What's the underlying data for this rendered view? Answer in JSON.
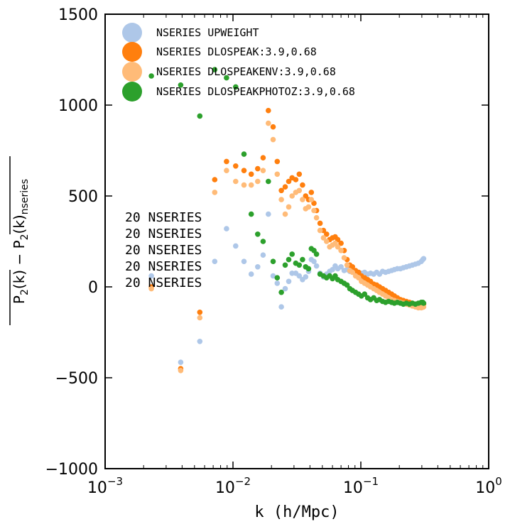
{
  "chart_data": {
    "type": "scatter",
    "xscale": "log",
    "xlim": [
      0.001,
      1
    ],
    "ylim": [
      -1000,
      1500
    ],
    "xlabel": "k (h/Mpc)",
    "ylabel": "P2(k) − P2(k)nseries",
    "ylabel_parts": {
      "p": "P",
      "sub": "2",
      "k": "(k)",
      "minus": " − ",
      "sub_tail": "nseries"
    },
    "xticks": [
      {
        "value": 0.001,
        "base": "10",
        "exp": "−3"
      },
      {
        "value": 0.01,
        "base": "10",
        "exp": "−2"
      },
      {
        "value": 0.1,
        "base": "10",
        "exp": "−1"
      },
      {
        "value": 1,
        "base": "10",
        "exp": "0"
      }
    ],
    "yticks": [
      {
        "value": -1000,
        "label": "−1000"
      },
      {
        "value": -500,
        "label": "−500"
      },
      {
        "value": 0,
        "label": "0"
      },
      {
        "value": 500,
        "label": "500"
      },
      {
        "value": 1000,
        "label": "1000"
      },
      {
        "value": 1500,
        "label": "1500"
      }
    ],
    "grid": false,
    "legend_position": "top-left",
    "annotation_lines": [
      "20 NSERIES",
      "20 NSERIES",
      "20 NSERIES",
      "20 NSERIES",
      "20 NSERIES"
    ],
    "series": [
      {
        "name": "NSERIES UPWEIGHT",
        "color": "#aec7e8",
        "points": [
          [
            0.0023,
            60
          ],
          [
            0.0039,
            -415
          ],
          [
            0.0055,
            -300
          ],
          [
            0.0072,
            140
          ],
          [
            0.0089,
            320
          ],
          [
            0.0105,
            225
          ],
          [
            0.0122,
            140
          ],
          [
            0.0139,
            70
          ],
          [
            0.0156,
            110
          ],
          [
            0.0172,
            175
          ],
          [
            0.0189,
            400
          ],
          [
            0.0206,
            60
          ],
          [
            0.0222,
            20
          ],
          [
            0.0239,
            -110
          ],
          [
            0.0256,
            -10
          ],
          [
            0.0273,
            30
          ],
          [
            0.029,
            75
          ],
          [
            0.031,
            75
          ],
          [
            0.033,
            60
          ],
          [
            0.035,
            40
          ],
          [
            0.037,
            55
          ],
          [
            0.039,
            85
          ],
          [
            0.041,
            150
          ],
          [
            0.043,
            140
          ],
          [
            0.045,
            115
          ],
          [
            0.048,
            75
          ],
          [
            0.051,
            55
          ],
          [
            0.054,
            70
          ],
          [
            0.057,
            85
          ],
          [
            0.06,
            95
          ],
          [
            0.063,
            115
          ],
          [
            0.066,
            100
          ],
          [
            0.07,
            110
          ],
          [
            0.074,
            90
          ],
          [
            0.078,
            95
          ],
          [
            0.082,
            85
          ],
          [
            0.086,
            90
          ],
          [
            0.091,
            85
          ],
          [
            0.096,
            80
          ],
          [
            0.101,
            75
          ],
          [
            0.107,
            80
          ],
          [
            0.113,
            70
          ],
          [
            0.119,
            75
          ],
          [
            0.126,
            70
          ],
          [
            0.133,
            80
          ],
          [
            0.14,
            70
          ],
          [
            0.148,
            85
          ],
          [
            0.156,
            80
          ],
          [
            0.165,
            85
          ],
          [
            0.174,
            90
          ],
          [
            0.183,
            95
          ],
          [
            0.193,
            100
          ],
          [
            0.204,
            100
          ],
          [
            0.215,
            105
          ],
          [
            0.227,
            110
          ],
          [
            0.24,
            115
          ],
          [
            0.253,
            120
          ],
          [
            0.267,
            125
          ],
          [
            0.282,
            130
          ],
          [
            0.297,
            140
          ],
          [
            0.305,
            150
          ],
          [
            0.31,
            155
          ]
        ]
      },
      {
        "name": "NSERIES DLOSPEAK:3.9,0.68",
        "color": "#ff7f0e",
        "points": [
          [
            0.0023,
            0
          ],
          [
            0.0039,
            -450
          ],
          [
            0.0055,
            -140
          ],
          [
            0.0072,
            590
          ],
          [
            0.0089,
            690
          ],
          [
            0.0105,
            665
          ],
          [
            0.0122,
            640
          ],
          [
            0.0139,
            620
          ],
          [
            0.0156,
            650
          ],
          [
            0.0172,
            710
          ],
          [
            0.0189,
            970
          ],
          [
            0.0206,
            880
          ],
          [
            0.0222,
            690
          ],
          [
            0.0239,
            530
          ],
          [
            0.0256,
            550
          ],
          [
            0.0273,
            580
          ],
          [
            0.029,
            600
          ],
          [
            0.031,
            590
          ],
          [
            0.033,
            620
          ],
          [
            0.035,
            560
          ],
          [
            0.037,
            500
          ],
          [
            0.039,
            480
          ],
          [
            0.041,
            520
          ],
          [
            0.043,
            460
          ],
          [
            0.045,
            420
          ],
          [
            0.048,
            350
          ],
          [
            0.051,
            310
          ],
          [
            0.054,
            290
          ],
          [
            0.057,
            260
          ],
          [
            0.06,
            270
          ],
          [
            0.063,
            275
          ],
          [
            0.066,
            260
          ],
          [
            0.07,
            240
          ],
          [
            0.074,
            200
          ],
          [
            0.078,
            150
          ],
          [
            0.082,
            120
          ],
          [
            0.086,
            110
          ],
          [
            0.091,
            90
          ],
          [
            0.096,
            80
          ],
          [
            0.101,
            60
          ],
          [
            0.107,
            50
          ],
          [
            0.113,
            40
          ],
          [
            0.119,
            30
          ],
          [
            0.126,
            15
          ],
          [
            0.133,
            10
          ],
          [
            0.14,
            0
          ],
          [
            0.148,
            -10
          ],
          [
            0.156,
            -20
          ],
          [
            0.165,
            -30
          ],
          [
            0.174,
            -40
          ],
          [
            0.183,
            -50
          ],
          [
            0.193,
            -60
          ],
          [
            0.204,
            -70
          ],
          [
            0.215,
            -75
          ],
          [
            0.227,
            -80
          ],
          [
            0.24,
            -85
          ],
          [
            0.253,
            -90
          ],
          [
            0.267,
            -95
          ],
          [
            0.282,
            -100
          ],
          [
            0.297,
            -105
          ],
          [
            0.305,
            -100
          ],
          [
            0.31,
            -95
          ]
        ]
      },
      {
        "name": "NSERIES DLOSPEAKENV:3.9,0.68",
        "color": "#ffbb78",
        "points": [
          [
            0.0023,
            -10
          ],
          [
            0.0039,
            -460
          ],
          [
            0.0055,
            -170
          ],
          [
            0.0072,
            520
          ],
          [
            0.0089,
            640
          ],
          [
            0.0105,
            580
          ],
          [
            0.0122,
            560
          ],
          [
            0.0139,
            560
          ],
          [
            0.0156,
            580
          ],
          [
            0.0172,
            640
          ],
          [
            0.0189,
            900
          ],
          [
            0.0206,
            810
          ],
          [
            0.0222,
            620
          ],
          [
            0.0239,
            480
          ],
          [
            0.0256,
            400
          ],
          [
            0.0273,
            440
          ],
          [
            0.029,
            500
          ],
          [
            0.031,
            520
          ],
          [
            0.033,
            530
          ],
          [
            0.035,
            480
          ],
          [
            0.037,
            430
          ],
          [
            0.039,
            440
          ],
          [
            0.041,
            480
          ],
          [
            0.043,
            420
          ],
          [
            0.045,
            380
          ],
          [
            0.048,
            310
          ],
          [
            0.051,
            270
          ],
          [
            0.054,
            250
          ],
          [
            0.057,
            220
          ],
          [
            0.06,
            230
          ],
          [
            0.063,
            240
          ],
          [
            0.066,
            220
          ],
          [
            0.07,
            200
          ],
          [
            0.074,
            160
          ],
          [
            0.078,
            120
          ],
          [
            0.082,
            90
          ],
          [
            0.086,
            80
          ],
          [
            0.091,
            60
          ],
          [
            0.096,
            50
          ],
          [
            0.101,
            30
          ],
          [
            0.107,
            20
          ],
          [
            0.113,
            10
          ],
          [
            0.119,
            0
          ],
          [
            0.126,
            -10
          ],
          [
            0.133,
            -20
          ],
          [
            0.14,
            -30
          ],
          [
            0.148,
            -40
          ],
          [
            0.156,
            -50
          ],
          [
            0.165,
            -60
          ],
          [
            0.174,
            -70
          ],
          [
            0.183,
            -75
          ],
          [
            0.193,
            -80
          ],
          [
            0.204,
            -85
          ],
          [
            0.215,
            -90
          ],
          [
            0.227,
            -95
          ],
          [
            0.24,
            -100
          ],
          [
            0.253,
            -105
          ],
          [
            0.267,
            -110
          ],
          [
            0.282,
            -115
          ],
          [
            0.297,
            -115
          ],
          [
            0.305,
            -112
          ],
          [
            0.31,
            -110
          ]
        ]
      },
      {
        "name": "NSERIES DLOSPEAKPHOTOZ:3.9,0.68",
        "color": "#2ca02c",
        "points": [
          [
            0.0023,
            1160
          ],
          [
            0.0039,
            1110
          ],
          [
            0.0055,
            940
          ],
          [
            0.0072,
            1195
          ],
          [
            0.0089,
            1150
          ],
          [
            0.0105,
            1100
          ],
          [
            0.0122,
            730
          ],
          [
            0.0139,
            400
          ],
          [
            0.0156,
            290
          ],
          [
            0.0172,
            250
          ],
          [
            0.0189,
            580
          ],
          [
            0.0206,
            140
          ],
          [
            0.0222,
            50
          ],
          [
            0.0239,
            -30
          ],
          [
            0.0256,
            120
          ],
          [
            0.0273,
            150
          ],
          [
            0.029,
            180
          ],
          [
            0.031,
            130
          ],
          [
            0.033,
            120
          ],
          [
            0.035,
            150
          ],
          [
            0.037,
            110
          ],
          [
            0.039,
            100
          ],
          [
            0.041,
            210
          ],
          [
            0.043,
            200
          ],
          [
            0.045,
            180
          ],
          [
            0.048,
            70
          ],
          [
            0.051,
            60
          ],
          [
            0.054,
            50
          ],
          [
            0.057,
            60
          ],
          [
            0.06,
            45
          ],
          [
            0.063,
            60
          ],
          [
            0.066,
            40
          ],
          [
            0.07,
            30
          ],
          [
            0.074,
            20
          ],
          [
            0.078,
            10
          ],
          [
            0.082,
            -10
          ],
          [
            0.086,
            -20
          ],
          [
            0.091,
            -30
          ],
          [
            0.096,
            -40
          ],
          [
            0.101,
            -50
          ],
          [
            0.107,
            -40
          ],
          [
            0.113,
            -60
          ],
          [
            0.119,
            -70
          ],
          [
            0.126,
            -60
          ],
          [
            0.133,
            -75
          ],
          [
            0.14,
            -70
          ],
          [
            0.148,
            -80
          ],
          [
            0.156,
            -85
          ],
          [
            0.165,
            -80
          ],
          [
            0.174,
            -85
          ],
          [
            0.183,
            -90
          ],
          [
            0.193,
            -85
          ],
          [
            0.204,
            -90
          ],
          [
            0.215,
            -95
          ],
          [
            0.227,
            -90
          ],
          [
            0.24,
            -95
          ],
          [
            0.253,
            -90
          ],
          [
            0.267,
            -95
          ],
          [
            0.282,
            -90
          ],
          [
            0.297,
            -85
          ],
          [
            0.305,
            -85
          ],
          [
            0.31,
            -90
          ]
        ]
      }
    ]
  }
}
